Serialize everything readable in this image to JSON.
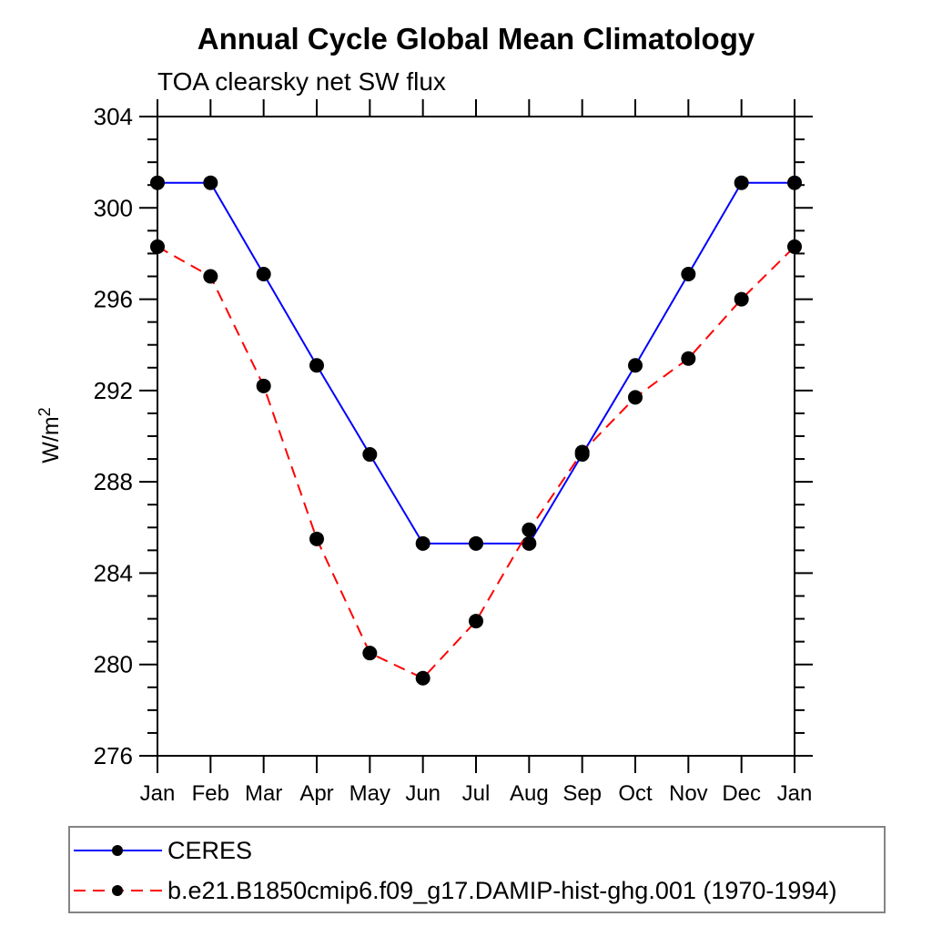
{
  "page": {
    "background": "#ffffff"
  },
  "chart_data": {
    "type": "line",
    "title": "Annual Cycle Global Mean Climatology",
    "subtitle": "TOA clearsky net SW flux",
    "ylabel_base": "W/m",
    "ylabel_sup": "2",
    "categories": [
      "Jan",
      "Feb",
      "Mar",
      "Apr",
      "May",
      "Jun",
      "Jul",
      "Aug",
      "Sep",
      "Oct",
      "Nov",
      "Dec",
      "Jan"
    ],
    "ylim": [
      276,
      304
    ],
    "yticks_major": [
      276,
      280,
      284,
      288,
      292,
      296,
      300,
      304
    ],
    "ytick_minor_step": 1,
    "grid": false,
    "axis_color": "#000000",
    "marker_color": "#000000",
    "series": [
      {
        "name": "CERES",
        "color": "#0000ff",
        "line_style": "solid",
        "marker": "circle",
        "values": [
          301.1,
          301.1,
          297.1,
          293.1,
          289.2,
          285.3,
          285.3,
          285.3,
          289.2,
          293.1,
          297.1,
          301.1,
          301.1
        ]
      },
      {
        "name": "b.e21.B1850cmip6.f09_g17.DAMIP-hist-ghg.001 (1970-1994)",
        "color": "#ff0000",
        "line_style": "dashed",
        "marker": "circle",
        "values": [
          298.3,
          297.0,
          292.2,
          285.5,
          280.5,
          279.4,
          281.9,
          285.9,
          289.3,
          291.7,
          293.4,
          296.0,
          298.3
        ]
      }
    ],
    "legend_position": "bottom-left",
    "legend_border_color": "#848484"
  }
}
